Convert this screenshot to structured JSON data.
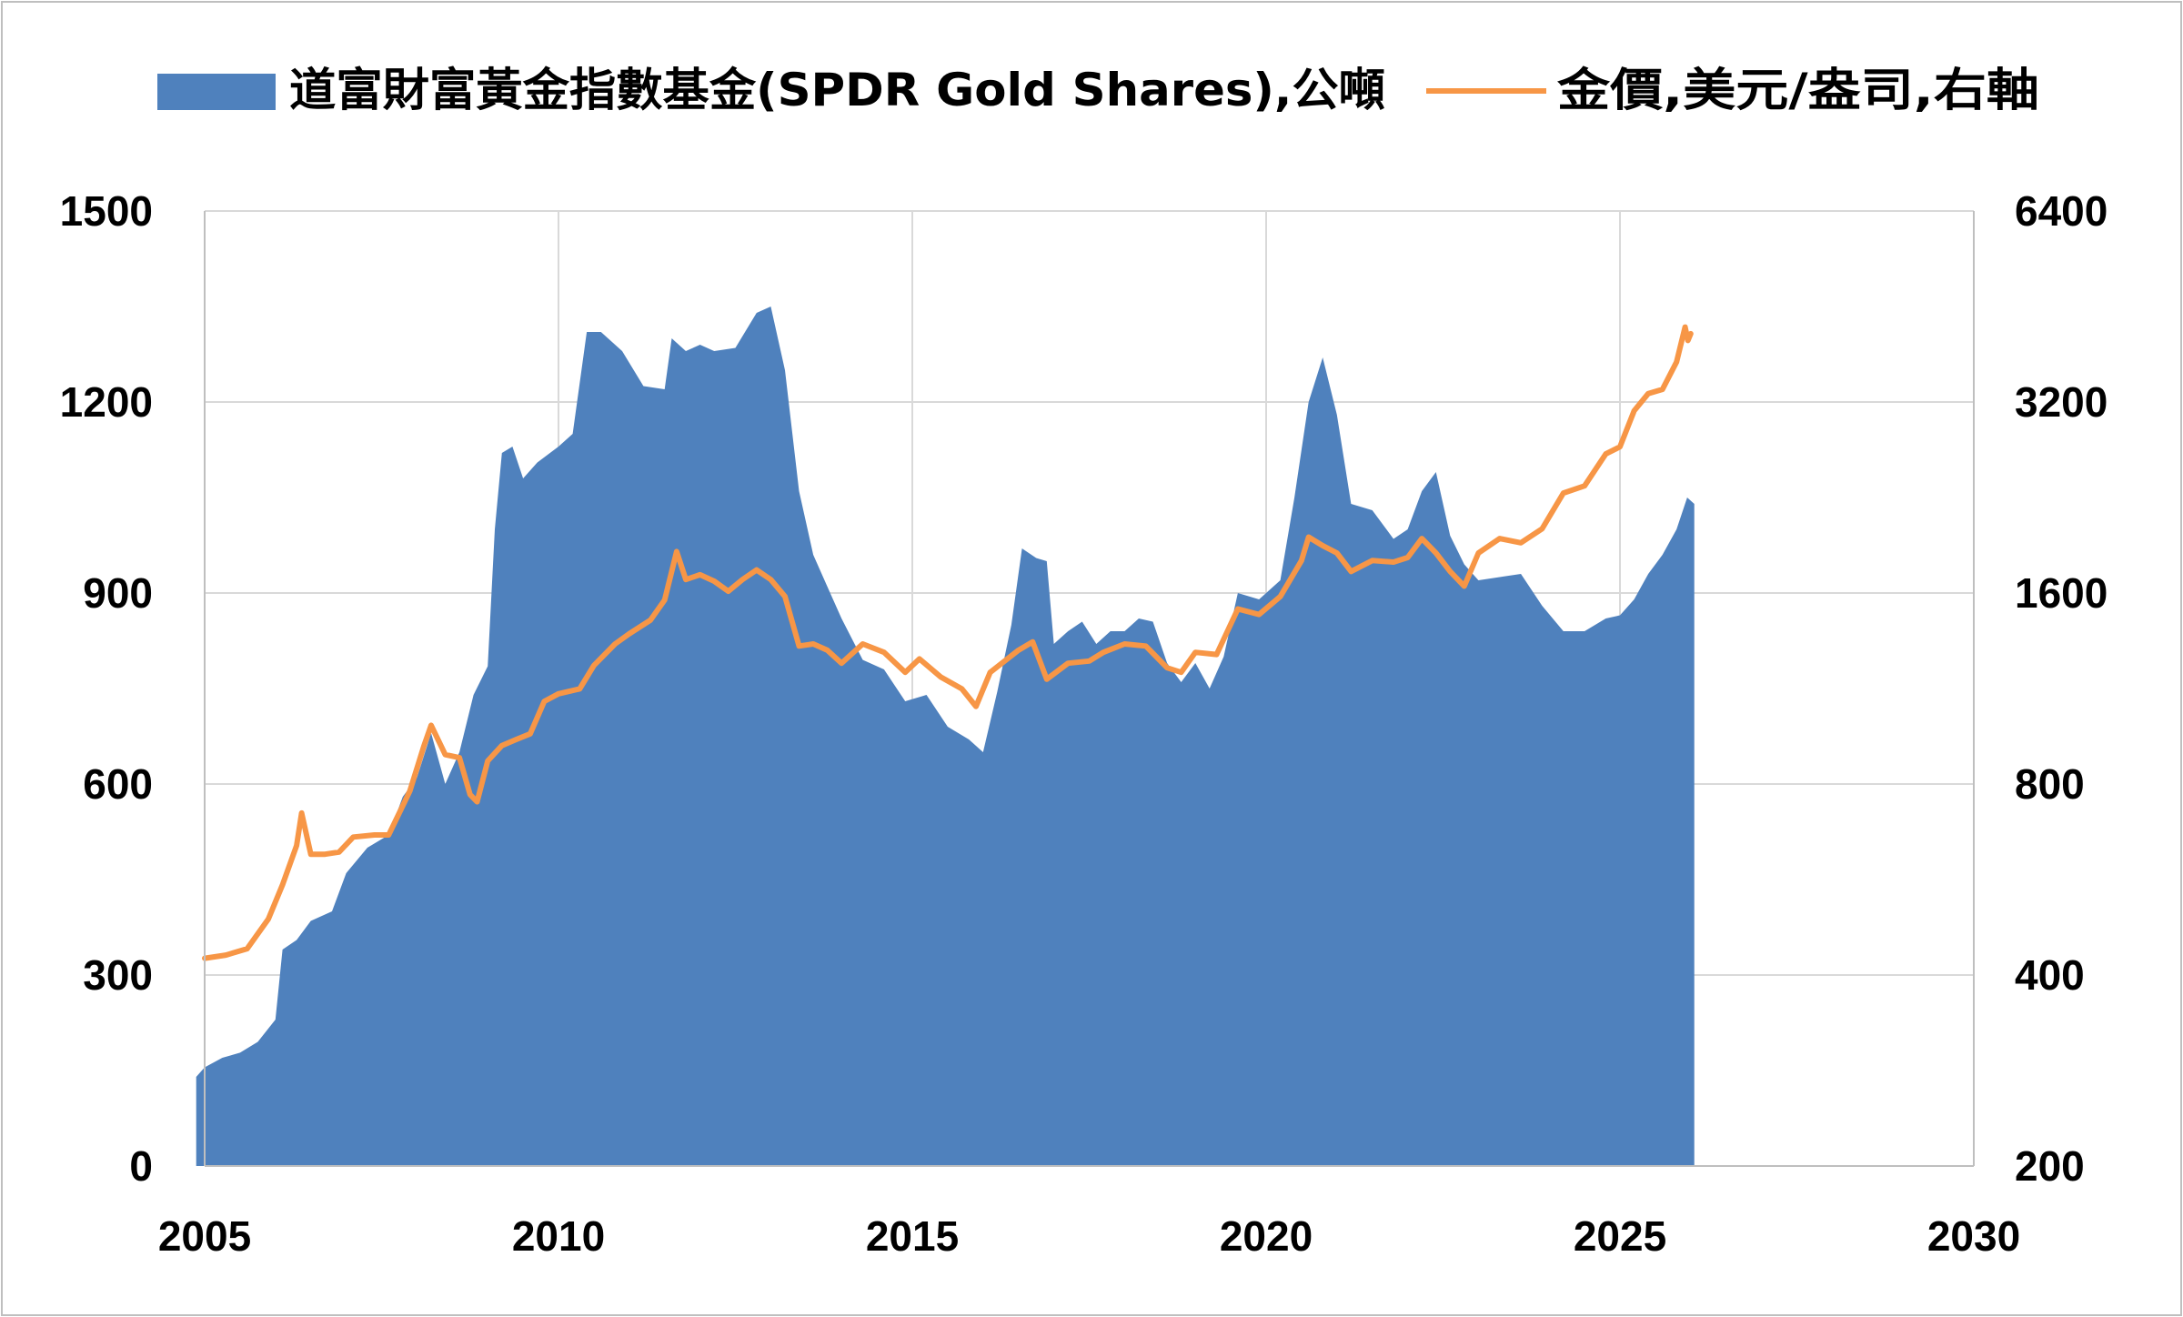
{
  "chart_data": {
    "type": "area",
    "title": "",
    "xlabel": "",
    "ylabel": "",
    "y2label": "",
    "xlim": [
      2005,
      2030
    ],
    "ylim": [
      0,
      1500
    ],
    "y2lim": [
      200,
      6400
    ],
    "y2scale": "log2",
    "x_ticks": [
      "2005",
      "2010",
      "2015",
      "2020",
      "2025",
      "2030"
    ],
    "y_ticks": [
      "0",
      "300",
      "600",
      "900",
      "1200",
      "1500"
    ],
    "y2_ticks": [
      "200",
      "400",
      "800",
      "1600",
      "3200",
      "6400"
    ],
    "grid": true,
    "legend_position": "top",
    "colors": {
      "holdings": "#4f81bd",
      "gold": "#f79646",
      "grid": "#d9d9d9",
      "frame": "#bfbfbf"
    },
    "series": [
      {
        "name": "道富財富黃金指數基金(SPDR Gold Shares),公噸",
        "type": "area",
        "axis": "left",
        "points": [
          [
            2004.88,
            140
          ],
          [
            2005.0,
            155
          ],
          [
            2005.25,
            170
          ],
          [
            2005.5,
            178
          ],
          [
            2005.75,
            195
          ],
          [
            2006.0,
            230
          ],
          [
            2006.1,
            340
          ],
          [
            2006.3,
            355
          ],
          [
            2006.5,
            385
          ],
          [
            2006.8,
            400
          ],
          [
            2007.0,
            460
          ],
          [
            2007.3,
            500
          ],
          [
            2007.6,
            520
          ],
          [
            2007.8,
            580
          ],
          [
            2008.0,
            610
          ],
          [
            2008.2,
            680
          ],
          [
            2008.4,
            600
          ],
          [
            2008.6,
            650
          ],
          [
            2008.8,
            740
          ],
          [
            2009.0,
            785
          ],
          [
            2009.1,
            1000
          ],
          [
            2009.2,
            1120
          ],
          [
            2009.35,
            1130
          ],
          [
            2009.5,
            1080
          ],
          [
            2009.7,
            1105
          ],
          [
            2010.0,
            1130
          ],
          [
            2010.2,
            1150
          ],
          [
            2010.4,
            1310
          ],
          [
            2010.6,
            1310
          ],
          [
            2010.9,
            1280
          ],
          [
            2011.2,
            1225
          ],
          [
            2011.5,
            1220
          ],
          [
            2011.6,
            1300
          ],
          [
            2011.8,
            1280
          ],
          [
            2012.0,
            1290
          ],
          [
            2012.2,
            1280
          ],
          [
            2012.5,
            1285
          ],
          [
            2012.8,
            1340
          ],
          [
            2013.0,
            1350
          ],
          [
            2013.2,
            1250
          ],
          [
            2013.4,
            1060
          ],
          [
            2013.6,
            960
          ],
          [
            2013.8,
            910
          ],
          [
            2014.0,
            860
          ],
          [
            2014.3,
            795
          ],
          [
            2014.6,
            780
          ],
          [
            2014.9,
            730
          ],
          [
            2015.2,
            740
          ],
          [
            2015.5,
            690
          ],
          [
            2015.8,
            670
          ],
          [
            2016.0,
            650
          ],
          [
            2016.2,
            745
          ],
          [
            2016.4,
            850
          ],
          [
            2016.55,
            970
          ],
          [
            2016.75,
            955
          ],
          [
            2016.9,
            950
          ],
          [
            2017.0,
            820
          ],
          [
            2017.2,
            840
          ],
          [
            2017.4,
            855
          ],
          [
            2017.6,
            820
          ],
          [
            2017.8,
            840
          ],
          [
            2018.0,
            840
          ],
          [
            2018.2,
            860
          ],
          [
            2018.4,
            855
          ],
          [
            2018.6,
            790
          ],
          [
            2018.8,
            760
          ],
          [
            2019.0,
            790
          ],
          [
            2019.2,
            750
          ],
          [
            2019.4,
            800
          ],
          [
            2019.6,
            900
          ],
          [
            2019.9,
            890
          ],
          [
            2020.2,
            920
          ],
          [
            2020.4,
            1050
          ],
          [
            2020.6,
            1200
          ],
          [
            2020.8,
            1270
          ],
          [
            2021.0,
            1180
          ],
          [
            2021.2,
            1040
          ],
          [
            2021.5,
            1030
          ],
          [
            2021.8,
            985
          ],
          [
            2022.0,
            1000
          ],
          [
            2022.2,
            1060
          ],
          [
            2022.4,
            1090
          ],
          [
            2022.6,
            990
          ],
          [
            2022.8,
            945
          ],
          [
            2023.0,
            920
          ],
          [
            2023.3,
            925
          ],
          [
            2023.6,
            930
          ],
          [
            2023.9,
            880
          ],
          [
            2024.2,
            840
          ],
          [
            2024.5,
            840
          ],
          [
            2024.8,
            860
          ],
          [
            2025.0,
            865
          ],
          [
            2025.2,
            890
          ],
          [
            2025.4,
            930
          ],
          [
            2025.6,
            960
          ],
          [
            2025.8,
            1000
          ],
          [
            2025.95,
            1050
          ],
          [
            2026.0,
            1045
          ],
          [
            2026.05,
            1040
          ]
        ]
      },
      {
        "name": "金價,美元/盎司,右軸",
        "type": "line",
        "axis": "right",
        "points": [
          [
            2005.0,
            425
          ],
          [
            2005.3,
            430
          ],
          [
            2005.6,
            440
          ],
          [
            2005.9,
            490
          ],
          [
            2006.1,
            555
          ],
          [
            2006.3,
            640
          ],
          [
            2006.37,
            720
          ],
          [
            2006.5,
            620
          ],
          [
            2006.7,
            620
          ],
          [
            2006.9,
            625
          ],
          [
            2007.1,
            660
          ],
          [
            2007.4,
            665
          ],
          [
            2007.6,
            665
          ],
          [
            2007.9,
            780
          ],
          [
            2008.1,
            920
          ],
          [
            2008.2,
            990
          ],
          [
            2008.4,
            890
          ],
          [
            2008.6,
            880
          ],
          [
            2008.75,
            770
          ],
          [
            2008.85,
            750
          ],
          [
            2009.0,
            870
          ],
          [
            2009.2,
            920
          ],
          [
            2009.4,
            940
          ],
          [
            2009.6,
            960
          ],
          [
            2009.8,
            1080
          ],
          [
            2010.0,
            1110
          ],
          [
            2010.3,
            1130
          ],
          [
            2010.5,
            1230
          ],
          [
            2010.8,
            1330
          ],
          [
            2011.0,
            1380
          ],
          [
            2011.3,
            1450
          ],
          [
            2011.5,
            1560
          ],
          [
            2011.67,
            1860
          ],
          [
            2011.8,
            1680
          ],
          [
            2012.0,
            1710
          ],
          [
            2012.2,
            1670
          ],
          [
            2012.4,
            1610
          ],
          [
            2012.6,
            1680
          ],
          [
            2012.8,
            1740
          ],
          [
            2013.0,
            1680
          ],
          [
            2013.2,
            1580
          ],
          [
            2013.4,
            1320
          ],
          [
            2013.6,
            1330
          ],
          [
            2013.8,
            1300
          ],
          [
            2014.0,
            1240
          ],
          [
            2014.3,
            1330
          ],
          [
            2014.6,
            1290
          ],
          [
            2014.9,
            1200
          ],
          [
            2015.1,
            1260
          ],
          [
            2015.4,
            1180
          ],
          [
            2015.7,
            1130
          ],
          [
            2015.9,
            1060
          ],
          [
            2016.1,
            1200
          ],
          [
            2016.5,
            1300
          ],
          [
            2016.7,
            1340
          ],
          [
            2016.9,
            1170
          ],
          [
            2017.2,
            1240
          ],
          [
            2017.5,
            1250
          ],
          [
            2017.7,
            1290
          ],
          [
            2018.0,
            1330
          ],
          [
            2018.3,
            1320
          ],
          [
            2018.6,
            1220
          ],
          [
            2018.8,
            1200
          ],
          [
            2019.0,
            1290
          ],
          [
            2019.3,
            1280
          ],
          [
            2019.6,
            1510
          ],
          [
            2019.9,
            1480
          ],
          [
            2020.2,
            1580
          ],
          [
            2020.5,
            1800
          ],
          [
            2020.6,
            1960
          ],
          [
            2020.8,
            1900
          ],
          [
            2021.0,
            1850
          ],
          [
            2021.2,
            1730
          ],
          [
            2021.5,
            1800
          ],
          [
            2021.8,
            1790
          ],
          [
            2022.0,
            1820
          ],
          [
            2022.2,
            1950
          ],
          [
            2022.4,
            1850
          ],
          [
            2022.6,
            1730
          ],
          [
            2022.8,
            1640
          ],
          [
            2023.0,
            1850
          ],
          [
            2023.3,
            1950
          ],
          [
            2023.6,
            1920
          ],
          [
            2023.9,
            2020
          ],
          [
            2024.2,
            2300
          ],
          [
            2024.5,
            2360
          ],
          [
            2024.8,
            2650
          ],
          [
            2025.0,
            2720
          ],
          [
            2025.2,
            3100
          ],
          [
            2025.4,
            3300
          ],
          [
            2025.6,
            3350
          ],
          [
            2025.8,
            3700
          ],
          [
            2025.92,
            4200
          ],
          [
            2025.96,
            4000
          ],
          [
            2026.0,
            4100
          ]
        ]
      }
    ]
  }
}
